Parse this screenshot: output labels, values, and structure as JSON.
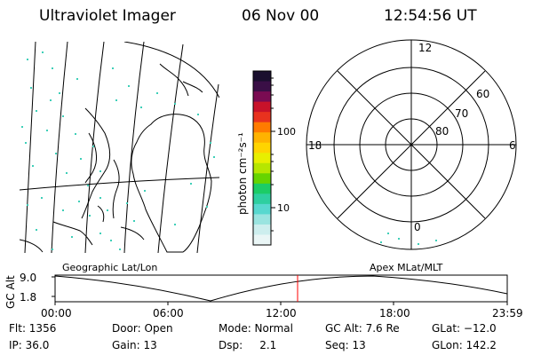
{
  "header": {
    "title": "Ultraviolet Imager",
    "date": "06 Nov 00",
    "time": "12:54:56 UT"
  },
  "colorbar": {
    "unit_label": "photon cm⁻²s⁻¹",
    "ticks": [
      "100",
      "10"
    ],
    "scale": "log",
    "colors": [
      "#1a0f2e",
      "#3a0f46",
      "#7a0b52",
      "#c8122a",
      "#e8321e",
      "#ff7b00",
      "#ffb300",
      "#ffd400",
      "#e8ef00",
      "#b6e600",
      "#66d400",
      "#1ccc66",
      "#2ecfa0",
      "#58d8cf",
      "#9ae4e0",
      "#cdeeee",
      "#eaf6f6"
    ]
  },
  "map": {
    "left_label": "Geographic Lat/Lon",
    "right_label": "Apex MLat/MLT"
  },
  "polar": {
    "mlt_labels": {
      "top": "12",
      "left": "18",
      "right": "6",
      "bottom": "0"
    },
    "lat_labels": [
      "60",
      "70",
      "80"
    ]
  },
  "altitude_plot": {
    "y_label": "GC Alt",
    "y_ticks": [
      "9.0",
      "1.8"
    ],
    "x_ticks": [
      "00:00",
      "06:00",
      "12:00",
      "18:00",
      "23:59"
    ],
    "current_time": "12:54:56",
    "marker_color": "#ff0000"
  },
  "footer": {
    "row1": [
      {
        "text": "Flt: 1356"
      },
      {
        "text": "Door: Open"
      },
      {
        "text": "Mode: Normal"
      },
      {
        "text": "GC Alt: 7.6 Re"
      },
      {
        "text": "GLat: −12.0"
      }
    ],
    "row2": [
      {
        "text": "IP: 36.0"
      },
      {
        "text": "Gain: 13"
      },
      {
        "text": "Dsp:     2.1"
      },
      {
        "text": "Seq: 13"
      },
      {
        "text": "GLon: 142.2"
      }
    ]
  }
}
